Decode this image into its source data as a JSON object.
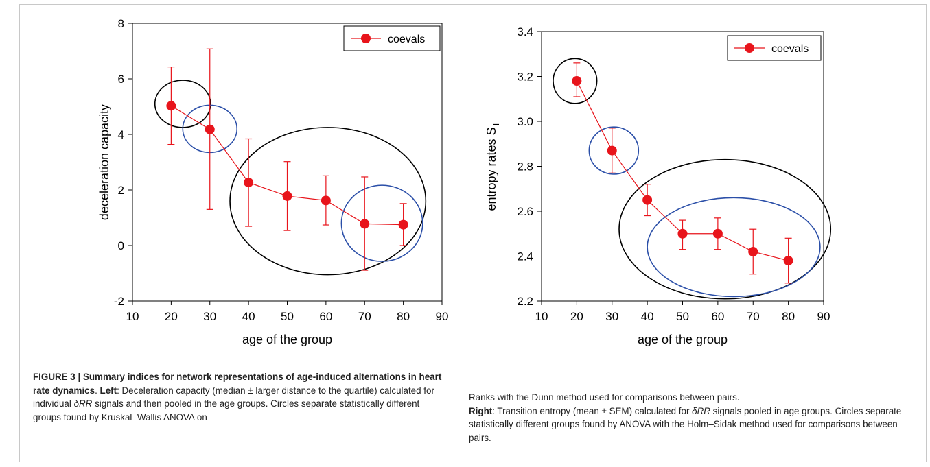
{
  "chart_data": [
    {
      "type": "line",
      "xlabel": "age of  the group",
      "ylabel": "deceleration capacity",
      "xlim": [
        10,
        90
      ],
      "ylim": [
        -2,
        8
      ],
      "x_ticks": [
        10,
        20,
        30,
        40,
        50,
        60,
        70,
        80,
        90
      ],
      "y_ticks": [
        -2,
        0,
        2,
        4,
        6,
        8
      ],
      "legend_position": "top-right",
      "series": [
        {
          "name": "coevals",
          "color": "#e8141b",
          "x": [
            20,
            30,
            40,
            50,
            60,
            70,
            80
          ],
          "y": [
            5.03,
            4.18,
            2.27,
            1.78,
            1.62,
            0.78,
            0.75
          ],
          "err_high": [
            6.43,
            7.08,
            3.84,
            3.02,
            2.51,
            2.47,
            1.51
          ],
          "err_low": [
            3.64,
            1.3,
            0.69,
            0.54,
            0.74,
            -0.89,
            0.0
          ]
        }
      ],
      "circles": [
        {
          "cx": 23,
          "cy": 5.1,
          "rx": 7.2,
          "ry": 0.85,
          "color": "#000000"
        },
        {
          "cx": 30,
          "cy": 4.2,
          "rx": 7.0,
          "ry": 0.85,
          "color": "#2b4fa8"
        },
        {
          "cx": 60.5,
          "cy": 1.6,
          "rx": 25.3,
          "ry": 2.65,
          "color": "#000000"
        },
        {
          "cx": 74.5,
          "cy": 0.8,
          "rx": 10.5,
          "ry": 1.37,
          "color": "#2b4fa8"
        }
      ]
    },
    {
      "type": "line",
      "xlabel": "age of  the group",
      "ylabel": "entropy rates S",
      "ylabel_sub": "T",
      "xlim": [
        10,
        90
      ],
      "ylim": [
        2.2,
        3.4
      ],
      "x_ticks": [
        10,
        20,
        30,
        40,
        50,
        60,
        70,
        80,
        90
      ],
      "y_ticks": [
        "2.2",
        "2.4",
        "2.6",
        "2.8",
        "3.0",
        "3.2",
        "3.4"
      ],
      "legend_position": "top-right",
      "series": [
        {
          "name": "coevals",
          "color": "#e8141b",
          "x": [
            20,
            30,
            40,
            50,
            60,
            70,
            80
          ],
          "y": [
            3.18,
            2.87,
            2.65,
            2.5,
            2.5,
            2.42,
            2.38
          ],
          "err_high": [
            3.26,
            2.97,
            2.72,
            2.56,
            2.57,
            2.52,
            2.48
          ],
          "err_low": [
            3.11,
            2.77,
            2.58,
            2.43,
            2.43,
            2.32,
            2.28
          ]
        }
      ],
      "circles": [
        {
          "cx": 19.5,
          "cy": 3.18,
          "rx": 6.2,
          "ry": 0.1,
          "color": "#000000"
        },
        {
          "cx": 30.5,
          "cy": 2.87,
          "rx": 7.0,
          "ry": 0.105,
          "color": "#2b4fa8"
        },
        {
          "cx": 62,
          "cy": 2.52,
          "rx": 30.0,
          "ry": 0.31,
          "color": "#000000"
        },
        {
          "cx": 64.5,
          "cy": 2.44,
          "rx": 24.5,
          "ry": 0.22,
          "color": "#2b4fa8"
        }
      ]
    }
  ],
  "caption_left": {
    "fig_label": "FIGURE 3 | Summary indices for network representations of age-induced alternations in heart rate dynamics",
    "sep1": ". ",
    "left_label": "Left",
    "text_1": ": Deceleration capacity (median ± larger distance to the quartile) calculated for individual ",
    "signal": "δRR",
    "text_2": " signals and then pooled in the age groups. Circles separate statistically different groups found by Kruskal–Wallis ANOVA on"
  },
  "caption_right": {
    "text_0": "Ranks with the Dunn method used for comparisons between pairs.",
    "right_label": "Right",
    "text_1": ": Transition entropy (mean ± SEM) calculated for ",
    "signal": "δRR",
    "text_2": " signals pooled in age groups. Circles separate statistically different groups found by ANOVA with the Holm–Sidak method used for comparisons between pairs."
  }
}
